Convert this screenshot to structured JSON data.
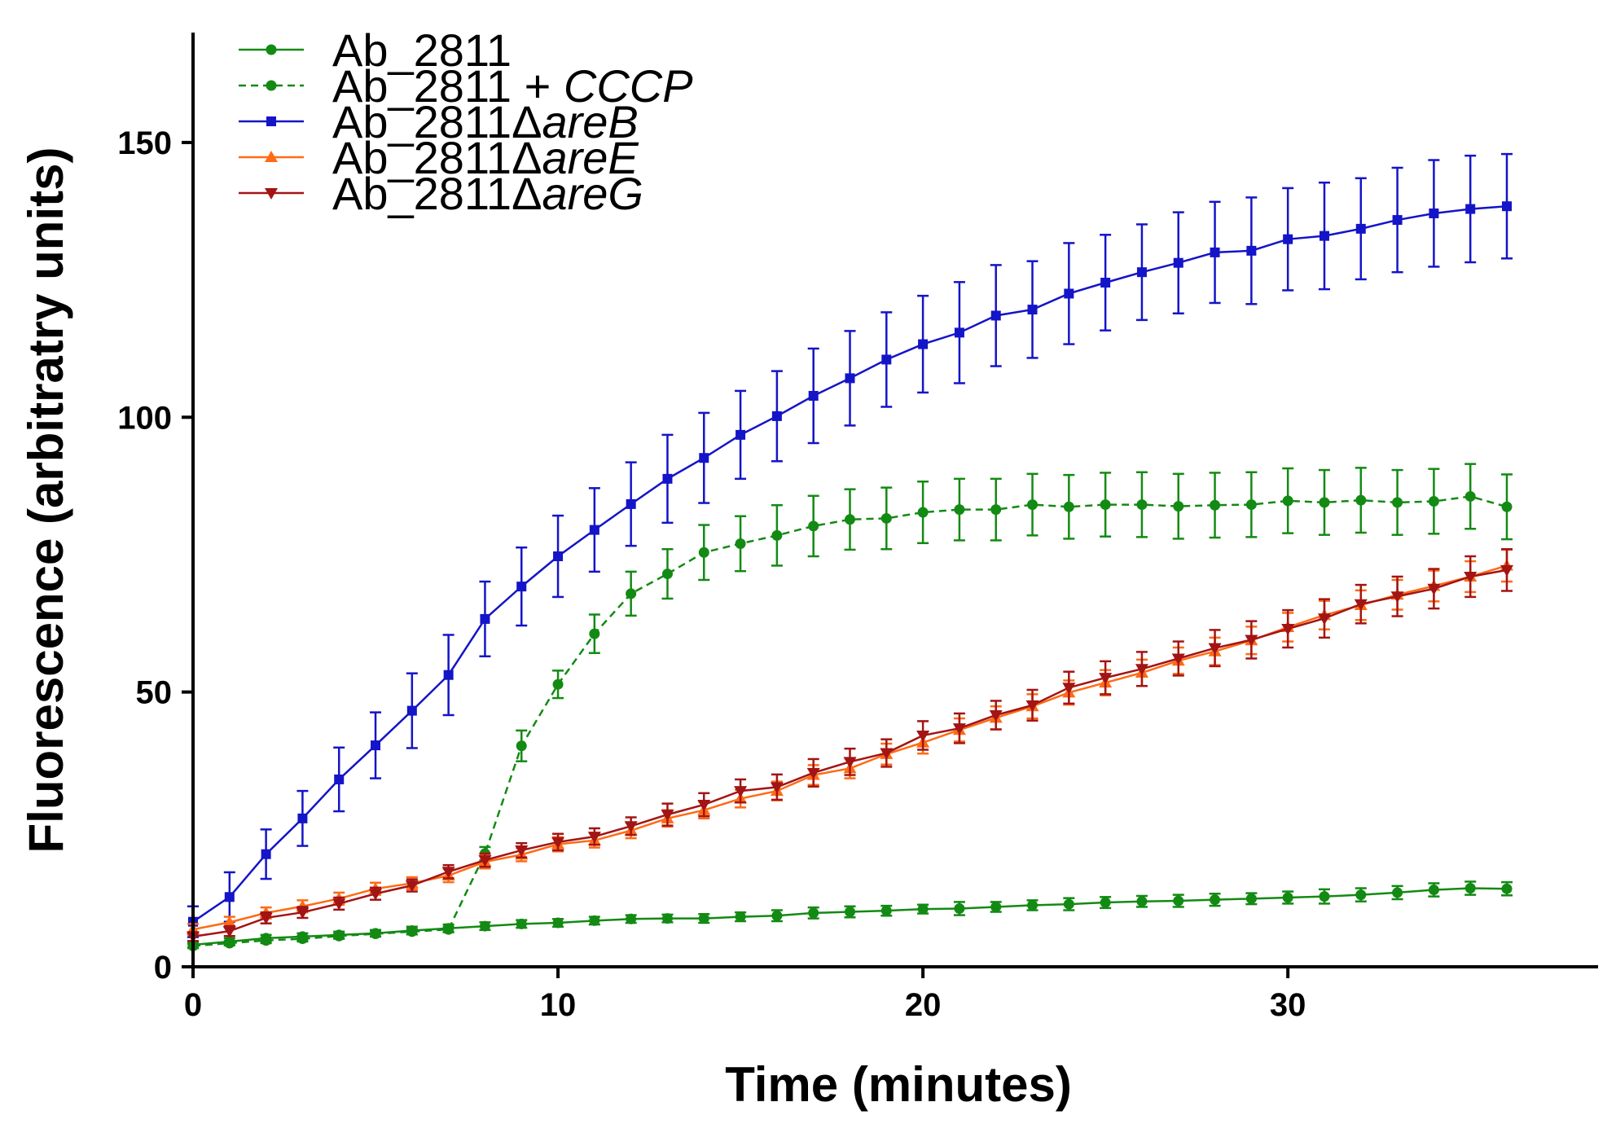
{
  "chart_data": {
    "type": "line",
    "title": "",
    "xlabel": "Time (minutes)",
    "ylabel": "Fluorescence (arbitratry units)",
    "xlim": [
      0,
      38.5
    ],
    "ylim": [
      0,
      170
    ],
    "xticks": [
      0,
      10,
      20,
      30
    ],
    "yticks": [
      0,
      50,
      100,
      150
    ],
    "grid": false,
    "legend_position": "top-left",
    "x": [
      0,
      1,
      2,
      3,
      4,
      5,
      6,
      7,
      8,
      9,
      10,
      11,
      12,
      13,
      14,
      15,
      16,
      17,
      18,
      19,
      20,
      21,
      22,
      23,
      24,
      25,
      26,
      27,
      28,
      29,
      30,
      31,
      32,
      33,
      34,
      35,
      36
    ],
    "series": [
      {
        "name": "Ab_2811",
        "legend_prefix": "Ab_2811",
        "legend_italic": "",
        "color": "#138a13",
        "marker": "circle",
        "dash": "solid",
        "values": [
          4.0,
          4.6,
          5.2,
          5.5,
          5.8,
          6.1,
          6.6,
          7.0,
          7.4,
          7.8,
          8.0,
          8.4,
          8.7,
          8.8,
          8.8,
          9.1,
          9.3,
          9.8,
          10.0,
          10.2,
          10.5,
          10.6,
          10.9,
          11.2,
          11.4,
          11.7,
          11.9,
          12.0,
          12.2,
          12.4,
          12.6,
          12.8,
          13.1,
          13.5,
          14.0,
          14.3,
          14.2
        ],
        "errors": [
          0.5,
          0.6,
          0.6,
          0.6,
          0.6,
          0.6,
          0.7,
          0.7,
          0.7,
          0.7,
          0.7,
          0.7,
          0.7,
          0.7,
          0.8,
          0.8,
          1.0,
          1.0,
          1.0,
          0.9,
          0.8,
          1.2,
          0.9,
          0.9,
          1.1,
          1.0,
          1.0,
          1.1,
          1.1,
          1.0,
          1.1,
          1.3,
          1.2,
          1.2,
          1.2,
          1.2,
          1.2
        ]
      },
      {
        "name": "Ab_2811 + CCCP",
        "legend_prefix": "Ab_2811 + ",
        "legend_italic": "CCCP",
        "color": "#138a13",
        "marker": "circle",
        "dash": "dashed",
        "values": [
          3.8,
          4.3,
          4.8,
          5.1,
          5.6,
          6.0,
          6.4,
          6.8,
          20.6,
          40.2,
          51.4,
          60.6,
          67.9,
          71.5,
          75.4,
          77.0,
          78.5,
          80.2,
          81.4,
          81.6,
          82.7,
          83.2,
          83.2,
          84.1,
          83.7,
          84.1,
          84.1,
          83.8,
          84.0,
          84.1,
          84.8,
          84.5,
          84.9,
          84.5,
          84.7,
          85.6,
          83.7
        ],
        "errors": [
          0.4,
          0.4,
          0.5,
          0.5,
          0.5,
          0.5,
          0.5,
          0.5,
          1.2,
          2.8,
          2.5,
          3.5,
          4.0,
          4.5,
          5.0,
          5.0,
          5.5,
          5.5,
          5.5,
          5.6,
          5.6,
          5.6,
          5.6,
          5.6,
          5.8,
          5.8,
          5.9,
          5.9,
          5.9,
          5.9,
          5.9,
          5.9,
          5.9,
          5.9,
          5.9,
          5.9,
          5.9
        ]
      },
      {
        "name": "Ab_2811ΔareB",
        "legend_prefix": "Ab_2811Δ",
        "legend_italic": "areB",
        "color": "#1414c8",
        "marker": "square",
        "dash": "solid",
        "values": [
          8.2,
          12.7,
          20.5,
          27.0,
          34.1,
          40.3,
          46.6,
          53.1,
          63.3,
          69.2,
          74.7,
          79.5,
          84.2,
          88.8,
          92.6,
          96.8,
          100.2,
          103.9,
          107.1,
          110.5,
          113.3,
          115.4,
          118.5,
          119.6,
          122.5,
          124.5,
          126.4,
          128.1,
          130.0,
          130.3,
          132.4,
          133.0,
          134.3,
          135.9,
          137.1,
          137.9,
          138.4
        ],
        "errors": [
          2.8,
          4.5,
          4.5,
          5.0,
          5.8,
          6.0,
          6.8,
          7.3,
          6.8,
          7.1,
          7.4,
          7.6,
          7.6,
          8.0,
          8.2,
          8.0,
          8.2,
          8.6,
          8.6,
          8.6,
          8.8,
          9.2,
          9.2,
          8.8,
          9.2,
          8.7,
          8.7,
          9.2,
          9.2,
          9.7,
          9.3,
          9.7,
          9.2,
          9.5,
          9.7,
          9.7,
          9.5
        ]
      },
      {
        "name": "Ab_2811ΔareE",
        "legend_prefix": "Ab_2811Δ",
        "legend_italic": "areE",
        "color": "#ff6a14",
        "marker": "triangle-up",
        "dash": "solid",
        "values": [
          6.8,
          8.1,
          9.8,
          11.0,
          12.4,
          14.2,
          15.2,
          16.6,
          19.1,
          20.4,
          22.3,
          23.0,
          24.8,
          27.0,
          28.5,
          30.6,
          32.0,
          34.9,
          36.1,
          38.7,
          40.8,
          43.1,
          45.3,
          47.4,
          49.9,
          51.7,
          53.5,
          55.7,
          57.4,
          59.4,
          61.8,
          64.0,
          65.8,
          67.7,
          69.3,
          71.0,
          73.0
        ],
        "errors": [
          1.0,
          1.0,
          1.0,
          1.1,
          1.1,
          1.1,
          1.1,
          1.2,
          1.2,
          1.2,
          1.3,
          1.3,
          1.4,
          1.5,
          1.5,
          1.6,
          1.7,
          1.8,
          1.8,
          1.9,
          2.0,
          2.1,
          2.1,
          2.2,
          2.2,
          2.3,
          2.4,
          2.4,
          2.5,
          2.5,
          2.6,
          2.6,
          2.7,
          2.7,
          2.8,
          2.8,
          2.9
        ]
      },
      {
        "name": "Ab_2811ΔareG",
        "legend_prefix": "Ab_2811Δ",
        "legend_italic": "areG",
        "color": "#a31414",
        "marker": "triangle-down",
        "dash": "solid",
        "values": [
          5.5,
          6.5,
          8.9,
          9.9,
          11.5,
          13.3,
          14.8,
          17.3,
          19.4,
          21.2,
          22.7,
          23.7,
          25.6,
          27.7,
          29.5,
          32.0,
          32.7,
          35.3,
          37.3,
          38.9,
          42.1,
          43.4,
          45.8,
          47.6,
          50.8,
          52.6,
          54.2,
          56.1,
          58.0,
          59.5,
          61.5,
          63.4,
          66.0,
          67.4,
          68.8,
          71.0,
          72.2
        ],
        "errors": [
          0.8,
          0.9,
          1.0,
          1.0,
          1.1,
          1.1,
          1.1,
          1.2,
          1.2,
          1.3,
          1.5,
          1.5,
          1.6,
          2.0,
          2.1,
          2.1,
          2.3,
          2.5,
          2.4,
          2.5,
          2.6,
          2.7,
          2.6,
          2.8,
          2.9,
          3.0,
          3.1,
          3.1,
          3.3,
          3.4,
          3.4,
          3.5,
          3.5,
          3.6,
          3.6,
          3.7,
          3.8
        ]
      }
    ]
  }
}
